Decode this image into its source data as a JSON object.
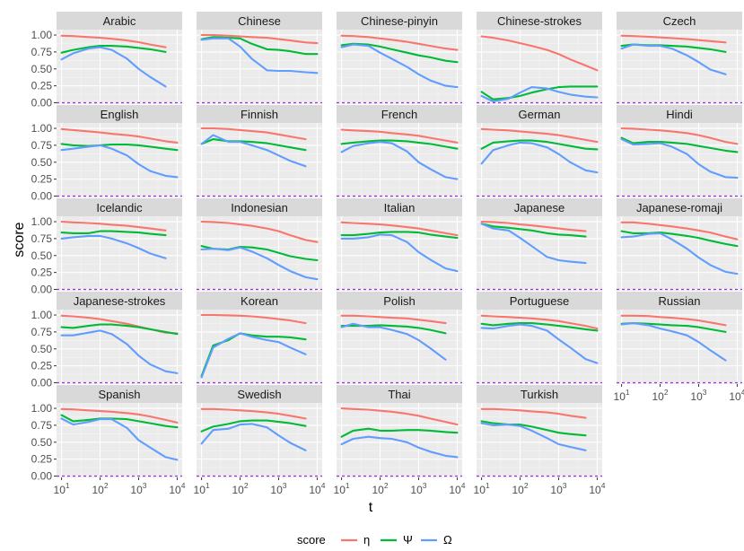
{
  "chart_data": {
    "type": "line",
    "facet": true,
    "xlabel": "t",
    "ylabel": "score",
    "x_scale": "log10",
    "x_ticks": [
      10,
      100,
      1000,
      10000
    ],
    "x_tick_labels": [
      {
        "base": "10",
        "exp": "1"
      },
      {
        "base": "10",
        "exp": "2"
      },
      {
        "base": "10",
        "exp": "3"
      },
      {
        "base": "10",
        "exp": "4"
      }
    ],
    "y_ticks": [
      0,
      0.25,
      0.5,
      0.75,
      1
    ],
    "y_tick_labels": [
      "0.00",
      "0.25",
      "0.50",
      "0.75",
      "1.00"
    ],
    "ylim": [
      -0.02,
      1.08
    ],
    "reference_line": {
      "y": 0,
      "color": "#9f2ee0",
      "style": "dashed"
    },
    "legend": {
      "title": "score",
      "position": "bottom"
    },
    "series_keys": [
      {
        "name": "η",
        "color": "#f8766d"
      },
      {
        "name": "Ψ",
        "color": "#00ba38"
      },
      {
        "name": "Ω",
        "color": "#619cff"
      }
    ],
    "x": [
      10,
      20,
      50,
      100,
      200,
      500,
      1000,
      2000,
      5000,
      10000
    ],
    "panels": [
      {
        "title": "Arabic",
        "eta": [
          0.99,
          0.985,
          0.97,
          0.96,
          0.945,
          0.92,
          0.895,
          0.86,
          0.82,
          null
        ],
        "psi": [
          0.74,
          0.78,
          0.82,
          0.84,
          0.84,
          0.83,
          0.81,
          0.79,
          0.75,
          null
        ],
        "omega": [
          0.64,
          0.73,
          0.8,
          0.82,
          0.78,
          0.65,
          0.5,
          0.38,
          0.24,
          null
        ]
      },
      {
        "title": "Chinese",
        "eta": [
          1.0,
          1.0,
          0.99,
          0.98,
          0.97,
          0.96,
          0.94,
          0.92,
          0.89,
          0.88
        ],
        "psi": [
          0.94,
          0.97,
          0.96,
          0.95,
          0.87,
          0.79,
          0.78,
          0.76,
          0.72,
          0.72
        ],
        "omega": [
          0.93,
          0.95,
          0.95,
          0.83,
          0.65,
          0.48,
          0.47,
          0.47,
          0.45,
          0.44
        ]
      },
      {
        "title": "Chinese-pinyin",
        "eta": [
          0.99,
          0.985,
          0.97,
          0.95,
          0.93,
          0.9,
          0.87,
          0.84,
          0.8,
          0.78
        ],
        "psi": [
          0.85,
          0.87,
          0.86,
          0.83,
          0.79,
          0.74,
          0.7,
          0.67,
          0.62,
          0.6
        ],
        "omega": [
          0.82,
          0.86,
          0.84,
          0.74,
          0.65,
          0.53,
          0.42,
          0.33,
          0.25,
          0.23
        ]
      },
      {
        "title": "Chinese-strokes",
        "eta": [
          0.98,
          0.96,
          0.92,
          0.88,
          0.84,
          0.78,
          0.72,
          0.64,
          0.55,
          0.48
        ],
        "psi": [
          0.16,
          0.05,
          0.07,
          0.1,
          0.15,
          0.2,
          0.23,
          0.24,
          0.24,
          0.24
        ],
        "omega": [
          0.1,
          0.02,
          0.06,
          0.15,
          0.23,
          0.21,
          0.16,
          0.12,
          0.09,
          0.08
        ]
      },
      {
        "title": "Czech",
        "eta": [
          0.99,
          0.985,
          0.975,
          0.965,
          0.955,
          0.94,
          0.925,
          0.91,
          0.89,
          null
        ],
        "psi": [
          0.84,
          0.86,
          0.85,
          0.85,
          0.84,
          0.83,
          0.81,
          0.79,
          0.75,
          null
        ],
        "omega": [
          0.8,
          0.86,
          0.84,
          0.84,
          0.8,
          0.7,
          0.6,
          0.49,
          0.42,
          null
        ]
      },
      {
        "title": "English",
        "eta": [
          0.99,
          0.975,
          0.955,
          0.94,
          0.92,
          0.9,
          0.88,
          0.85,
          0.81,
          0.79
        ],
        "psi": [
          0.77,
          0.75,
          0.74,
          0.75,
          0.76,
          0.76,
          0.75,
          0.73,
          0.7,
          0.68
        ],
        "omega": [
          0.68,
          0.7,
          0.73,
          0.75,
          0.7,
          0.6,
          0.47,
          0.37,
          0.3,
          0.28
        ]
      },
      {
        "title": "Finnish",
        "eta": [
          1.0,
          1.0,
          0.99,
          0.975,
          0.96,
          0.94,
          0.91,
          0.88,
          0.84,
          null
        ],
        "psi": [
          0.77,
          0.84,
          0.81,
          0.81,
          0.8,
          0.78,
          0.75,
          0.72,
          0.68,
          null
        ],
        "omega": [
          0.77,
          0.9,
          0.8,
          0.8,
          0.75,
          0.68,
          0.6,
          0.52,
          0.44,
          null
        ]
      },
      {
        "title": "French",
        "eta": [
          0.98,
          0.97,
          0.96,
          0.95,
          0.93,
          0.91,
          0.89,
          0.86,
          0.82,
          0.79
        ],
        "psi": [
          0.77,
          0.79,
          0.81,
          0.82,
          0.82,
          0.81,
          0.79,
          0.77,
          0.73,
          0.7
        ],
        "omega": [
          0.65,
          0.74,
          0.78,
          0.8,
          0.78,
          0.66,
          0.5,
          0.4,
          0.28,
          0.25
        ]
      },
      {
        "title": "German",
        "eta": [
          0.99,
          0.98,
          0.97,
          0.955,
          0.94,
          0.92,
          0.9,
          0.87,
          0.83,
          0.8
        ],
        "psi": [
          0.7,
          0.79,
          0.81,
          0.82,
          0.82,
          0.8,
          0.77,
          0.74,
          0.7,
          0.69
        ],
        "omega": [
          0.48,
          0.68,
          0.75,
          0.79,
          0.78,
          0.72,
          0.62,
          0.5,
          0.38,
          0.35
        ]
      },
      {
        "title": "Hindi",
        "eta": [
          1.0,
          0.995,
          0.98,
          0.97,
          0.955,
          0.93,
          0.9,
          0.86,
          0.8,
          0.77
        ],
        "psi": [
          0.86,
          0.78,
          0.8,
          0.8,
          0.79,
          0.77,
          0.74,
          0.71,
          0.67,
          0.65
        ],
        "omega": [
          0.84,
          0.76,
          0.77,
          0.78,
          0.73,
          0.62,
          0.47,
          0.36,
          0.28,
          0.27
        ]
      },
      {
        "title": "Icelandic",
        "eta": [
          1.0,
          0.99,
          0.98,
          0.97,
          0.955,
          0.94,
          0.92,
          0.9,
          0.87,
          null
        ],
        "psi": [
          0.84,
          0.83,
          0.83,
          0.86,
          0.86,
          0.85,
          0.84,
          0.82,
          0.8,
          null
        ],
        "omega": [
          0.75,
          0.77,
          0.79,
          0.79,
          0.75,
          0.68,
          0.61,
          0.53,
          0.46,
          null
        ]
      },
      {
        "title": "Indonesian",
        "eta": [
          1.0,
          0.995,
          0.98,
          0.96,
          0.94,
          0.9,
          0.86,
          0.8,
          0.73,
          0.7
        ],
        "psi": [
          0.64,
          0.6,
          0.59,
          0.63,
          0.62,
          0.59,
          0.54,
          0.49,
          0.45,
          0.43
        ],
        "omega": [
          0.59,
          0.6,
          0.58,
          0.62,
          0.56,
          0.46,
          0.36,
          0.27,
          0.18,
          0.15
        ]
      },
      {
        "title": "Italian",
        "eta": [
          0.99,
          0.98,
          0.97,
          0.96,
          0.945,
          0.92,
          0.9,
          0.87,
          0.83,
          0.8
        ],
        "psi": [
          0.8,
          0.8,
          0.82,
          0.84,
          0.85,
          0.85,
          0.84,
          0.81,
          0.78,
          0.76
        ],
        "omega": [
          0.75,
          0.75,
          0.77,
          0.81,
          0.8,
          0.7,
          0.55,
          0.44,
          0.31,
          0.27
        ]
      },
      {
        "title": "Japanese",
        "eta": [
          1.0,
          0.995,
          0.98,
          0.96,
          0.945,
          0.92,
          0.9,
          0.88,
          0.86,
          null
        ],
        "psi": [
          0.97,
          0.93,
          0.91,
          0.89,
          0.87,
          0.83,
          0.81,
          0.8,
          0.78,
          null
        ],
        "omega": [
          0.97,
          0.9,
          0.87,
          0.76,
          0.64,
          0.48,
          0.43,
          0.41,
          0.39,
          null
        ]
      },
      {
        "title": "Japanese-romaji",
        "eta": [
          0.99,
          0.99,
          0.97,
          0.95,
          0.93,
          0.9,
          0.87,
          0.84,
          0.78,
          0.74
        ],
        "psi": [
          0.86,
          0.83,
          0.83,
          0.84,
          0.82,
          0.79,
          0.76,
          0.72,
          0.67,
          0.64
        ],
        "omega": [
          0.77,
          0.78,
          0.82,
          0.83,
          0.74,
          0.6,
          0.47,
          0.36,
          0.26,
          0.23
        ]
      },
      {
        "title": "Japanese-strokes",
        "eta": [
          0.99,
          0.98,
          0.96,
          0.94,
          0.91,
          0.87,
          0.83,
          0.79,
          0.74,
          0.73
        ],
        "psi": [
          0.82,
          0.81,
          0.84,
          0.86,
          0.86,
          0.84,
          0.82,
          0.79,
          0.75,
          0.72
        ],
        "omega": [
          0.7,
          0.7,
          0.74,
          0.77,
          0.72,
          0.57,
          0.4,
          0.27,
          0.17,
          0.14
        ]
      },
      {
        "title": "Korean",
        "eta": [
          1.0,
          1.0,
          0.995,
          0.99,
          0.98,
          0.96,
          0.94,
          0.92,
          0.88,
          null
        ],
        "psi": [
          0.1,
          0.55,
          0.63,
          0.73,
          0.7,
          0.68,
          0.68,
          0.67,
          0.64,
          null
        ],
        "omega": [
          0.08,
          0.52,
          0.65,
          0.73,
          0.68,
          0.63,
          0.6,
          0.52,
          0.42,
          null
        ]
      },
      {
        "title": "Polish",
        "eta": [
          0.99,
          0.99,
          0.98,
          0.97,
          0.96,
          0.95,
          0.93,
          0.91,
          0.88,
          null
        ],
        "psi": [
          0.84,
          0.84,
          0.84,
          0.85,
          0.84,
          0.83,
          0.81,
          0.78,
          0.73,
          null
        ],
        "omega": [
          0.82,
          0.87,
          0.82,
          0.82,
          0.78,
          0.72,
          0.63,
          0.51,
          0.34,
          null
        ]
      },
      {
        "title": "Portuguese",
        "eta": [
          0.99,
          0.98,
          0.97,
          0.96,
          0.95,
          0.93,
          0.91,
          0.88,
          0.84,
          0.8
        ],
        "psi": [
          0.87,
          0.85,
          0.87,
          0.88,
          0.88,
          0.86,
          0.84,
          0.82,
          0.79,
          0.77
        ],
        "omega": [
          0.81,
          0.8,
          0.84,
          0.86,
          0.84,
          0.77,
          0.64,
          0.52,
          0.35,
          0.29
        ]
      },
      {
        "title": "Russian",
        "eta": [
          0.99,
          0.99,
          0.985,
          0.97,
          0.96,
          0.94,
          0.92,
          0.89,
          0.85,
          null
        ],
        "psi": [
          0.87,
          0.88,
          0.87,
          0.86,
          0.85,
          0.84,
          0.82,
          0.79,
          0.75,
          null
        ],
        "omega": [
          0.86,
          0.88,
          0.85,
          0.8,
          0.76,
          0.7,
          0.6,
          0.48,
          0.33,
          null
        ]
      },
      {
        "title": "Spanish",
        "eta": [
          0.99,
          0.985,
          0.97,
          0.96,
          0.95,
          0.93,
          0.91,
          0.88,
          0.83,
          0.79
        ],
        "psi": [
          0.9,
          0.81,
          0.83,
          0.85,
          0.85,
          0.84,
          0.81,
          0.78,
          0.74,
          0.72
        ],
        "omega": [
          0.85,
          0.76,
          0.8,
          0.84,
          0.84,
          0.71,
          0.53,
          0.42,
          0.28,
          0.24
        ]
      },
      {
        "title": "Swedish",
        "eta": [
          0.99,
          0.99,
          0.98,
          0.97,
          0.96,
          0.94,
          0.92,
          0.89,
          0.85,
          null
        ],
        "psi": [
          0.66,
          0.73,
          0.77,
          0.81,
          0.82,
          0.82,
          0.8,
          0.78,
          0.74,
          null
        ],
        "omega": [
          0.48,
          0.68,
          0.7,
          0.76,
          0.77,
          0.72,
          0.6,
          0.49,
          0.38,
          null
        ]
      },
      {
        "title": "Thai",
        "eta": [
          1.0,
          0.99,
          0.98,
          0.965,
          0.95,
          0.92,
          0.89,
          0.85,
          0.8,
          0.76
        ],
        "psi": [
          0.58,
          0.67,
          0.7,
          0.67,
          0.67,
          0.68,
          0.68,
          0.67,
          0.65,
          0.64
        ],
        "omega": [
          0.47,
          0.55,
          0.58,
          0.56,
          0.55,
          0.5,
          0.42,
          0.36,
          0.3,
          0.28
        ]
      },
      {
        "title": "Turkish",
        "eta": [
          0.99,
          0.99,
          0.98,
          0.97,
          0.955,
          0.94,
          0.92,
          0.89,
          0.86,
          null
        ],
        "psi": [
          0.81,
          0.78,
          0.76,
          0.76,
          0.73,
          0.68,
          0.64,
          0.62,
          0.6,
          null
        ],
        "omega": [
          0.78,
          0.75,
          0.76,
          0.74,
          0.67,
          0.56,
          0.47,
          0.43,
          0.38,
          null
        ]
      }
    ]
  }
}
